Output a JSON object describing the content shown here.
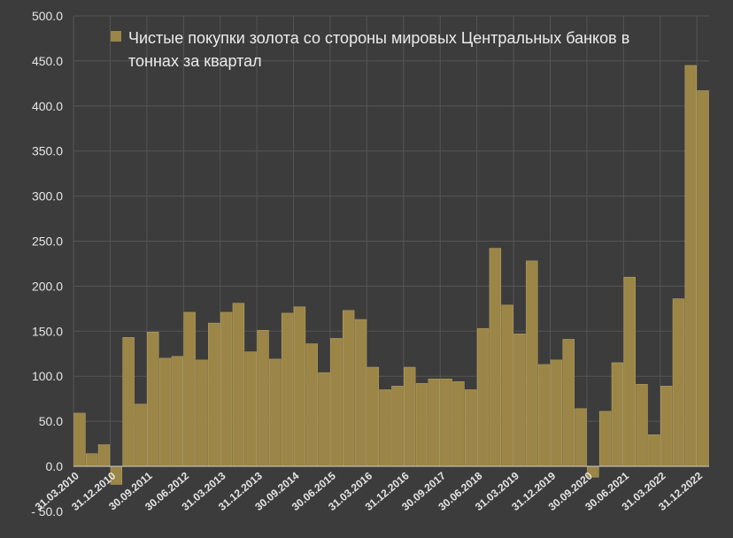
{
  "chart_data": {
    "type": "bar",
    "title": "",
    "xlabel": "",
    "ylabel": "",
    "ylim": [
      -50,
      500
    ],
    "yticks": [
      "- 50.0",
      "0.0",
      "50.0",
      "100.0",
      "150.0",
      "200.0",
      "250.0",
      "300.0",
      "350.0",
      "400.0",
      "450.0",
      "500.0"
    ],
    "ytick_values": [
      -50,
      0,
      50,
      100,
      150,
      200,
      250,
      300,
      350,
      400,
      450,
      500
    ],
    "grid": true,
    "legend": {
      "position": "top",
      "entries": [
        "Чистые покупки золота со стороны мировых Центральных банков в тоннах за квартал"
      ]
    },
    "colors": {
      "bar": "#9b8547",
      "background": "#3c3c3c",
      "grid": "#555555"
    },
    "xtick_labels": [
      {
        "index": 0,
        "label": "31.03.2010"
      },
      {
        "index": 3,
        "label": "31.12.2010"
      },
      {
        "index": 6,
        "label": "30.09.2011"
      },
      {
        "index": 9,
        "label": "30.06.2012"
      },
      {
        "index": 12,
        "label": "31.03.2013"
      },
      {
        "index": 15,
        "label": "31.12.2013"
      },
      {
        "index": 18,
        "label": "30.09.2014"
      },
      {
        "index": 21,
        "label": "30.06.2015"
      },
      {
        "index": 24,
        "label": "31.03.2016"
      },
      {
        "index": 27,
        "label": "31.12.2016"
      },
      {
        "index": 30,
        "label": "30.09.2017"
      },
      {
        "index": 33,
        "label": "30.06.2018"
      },
      {
        "index": 36,
        "label": "31.03.2019"
      },
      {
        "index": 39,
        "label": "31.12.2019"
      },
      {
        "index": 42,
        "label": "30.09.2020"
      },
      {
        "index": 45,
        "label": "30.06.2021"
      },
      {
        "index": 48,
        "label": "31.03.2022"
      },
      {
        "index": 51,
        "label": "31.12.2022"
      }
    ],
    "series": [
      {
        "name": "Чистые покупки золота со стороны мировых Центральных банков в тоннах за квартал",
        "values": [
          59,
          14,
          24,
          -20,
          143,
          69,
          149,
          120,
          122,
          171,
          118,
          159,
          171,
          181,
          127,
          151,
          119,
          170,
          177,
          136,
          104,
          142,
          173,
          163,
          110,
          85,
          89,
          110,
          92,
          97,
          97,
          94,
          85,
          153,
          242,
          179,
          147,
          228,
          113,
          118,
          141,
          64,
          -12,
          61,
          115,
          210,
          91,
          35,
          89,
          186,
          445,
          417
        ]
      }
    ]
  }
}
